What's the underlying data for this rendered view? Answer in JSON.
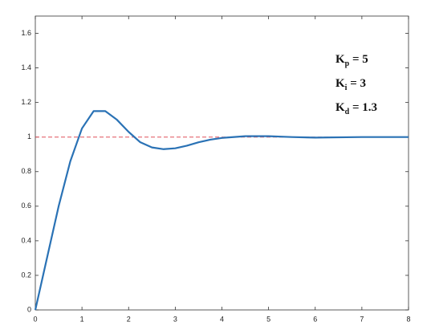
{
  "chart_data": {
    "type": "line",
    "x": [
      0,
      0.25,
      0.5,
      0.75,
      1.0,
      1.25,
      1.5,
      1.75,
      2.0,
      2.25,
      2.5,
      2.75,
      3.0,
      3.25,
      3.5,
      3.75,
      4.0,
      4.5,
      5.0,
      5.5,
      6.0,
      7.0,
      8.0
    ],
    "series": [
      {
        "color": "#2a72b5",
        "values": [
          0,
          0.3,
          0.6,
          0.86,
          1.05,
          1.15,
          1.15,
          1.1,
          1.03,
          0.97,
          0.94,
          0.93,
          0.935,
          0.95,
          0.97,
          0.985,
          0.995,
          1.005,
          1.005,
          1.0,
          0.997,
          1.0,
          1.0
        ]
      }
    ],
    "reference_line": {
      "value": 1,
      "color": "#e0505a"
    },
    "xlim": [
      0,
      8
    ],
    "xticks": [
      0,
      1,
      2,
      3,
      4,
      5,
      6,
      7,
      8
    ],
    "ylim": [
      0,
      1.7
    ],
    "yticks": [
      0,
      0.2,
      0.4,
      0.6,
      0.8,
      1,
      1.2,
      1.4,
      1.6
    ],
    "annotations": [
      {
        "base": "K",
        "sub": "p",
        "rest": " = 5"
      },
      {
        "base": "K",
        "sub": "i",
        "rest": " = 3"
      },
      {
        "base": "K",
        "sub": "d",
        "rest": " = 1.3"
      }
    ]
  }
}
